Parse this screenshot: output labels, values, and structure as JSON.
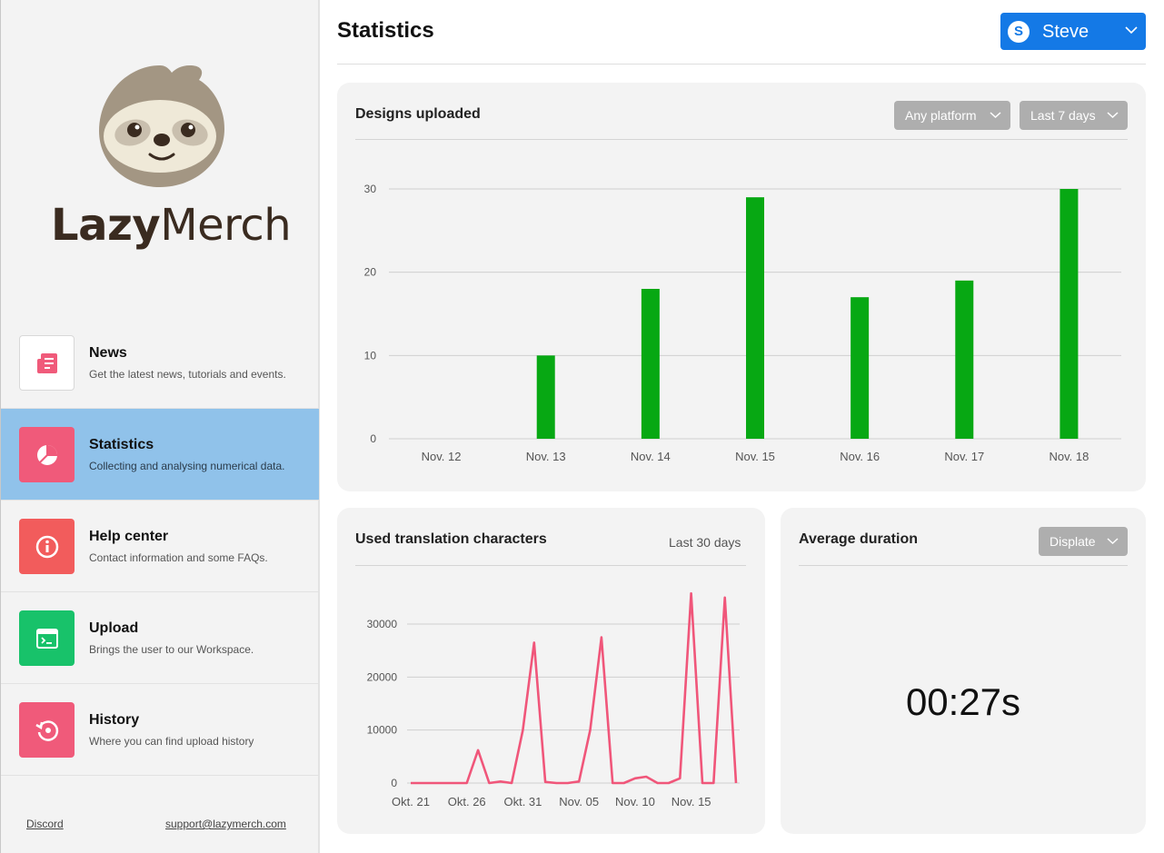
{
  "brand": {
    "name_bold": "Lazy",
    "name_light": "Merch"
  },
  "nav": [
    {
      "title": "News",
      "desc": "Get the latest news, tutorials and events.",
      "icon": "newspaper-icon",
      "color": "#f05a7a"
    },
    {
      "title": "Statistics",
      "desc": "Collecting and analysing numerical data.",
      "icon": "pie-chart-icon",
      "color": "#f05a7a",
      "active": true
    },
    {
      "title": "Help center",
      "desc": "Contact information and some FAQs.",
      "icon": "info-icon",
      "color": "#f25c5c"
    },
    {
      "title": "Upload",
      "desc": "Brings the user to our Workspace.",
      "icon": "terminal-window-icon",
      "color": "#18c26a"
    },
    {
      "title": "History",
      "desc": "Where you can find upload history",
      "icon": "history-icon",
      "color": "#f05a7a"
    }
  ],
  "footer": {
    "discord": "Discord",
    "support": "support@lazymerch.com"
  },
  "header": {
    "title": "Statistics",
    "user_initial": "S",
    "user_name": "Steve"
  },
  "designs_card": {
    "title": "Designs uploaded",
    "platform_filter": "Any platform",
    "range_filter": "Last 7 days"
  },
  "translation_card": {
    "title": "Used translation characters",
    "range": "Last 30 days"
  },
  "duration_card": {
    "title": "Average duration",
    "platform_filter": "Displate",
    "value": "00:27s"
  },
  "chart_data": [
    {
      "type": "bar",
      "title": "Designs uploaded",
      "categories": [
        "Nov. 12",
        "Nov. 13",
        "Nov. 14",
        "Nov. 15",
        "Nov. 16",
        "Nov. 17",
        "Nov. 18"
      ],
      "values": [
        0,
        10,
        18,
        29,
        17,
        19,
        30
      ],
      "yticks": [
        0,
        10,
        20,
        30
      ],
      "ylim": [
        0,
        30
      ],
      "color": "#07a813",
      "grid": true
    },
    {
      "type": "line",
      "title": "Used translation characters",
      "xticks": [
        "Okt. 21",
        "Okt. 26",
        "Okt. 31",
        "Nov. 05",
        "Nov. 10",
        "Nov. 15"
      ],
      "values": [
        0,
        0,
        0,
        0,
        0,
        0,
        6200,
        0,
        300,
        0,
        10000,
        26500,
        200,
        0,
        0,
        300,
        10000,
        27500,
        0,
        0,
        900,
        1200,
        0,
        0,
        900,
        35800,
        0,
        0,
        35000,
        0
      ],
      "yticks": [
        0,
        10000,
        20000,
        30000
      ],
      "ylim": [
        0,
        36000
      ],
      "color": "#f0567a",
      "grid": true
    }
  ]
}
